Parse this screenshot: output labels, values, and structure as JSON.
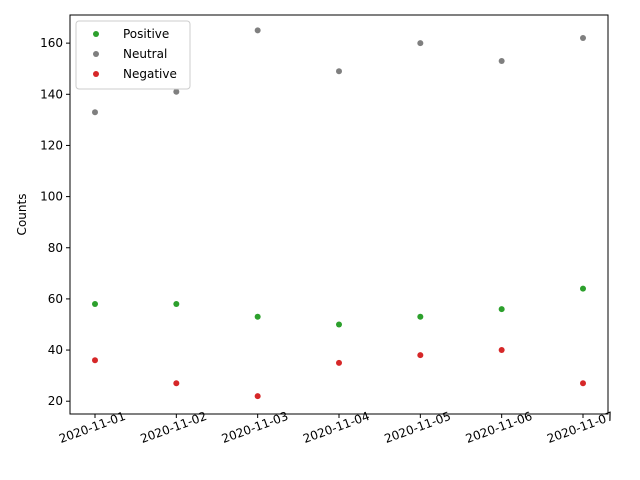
{
  "chart_data": {
    "type": "scatter",
    "title": "",
    "xlabel": "",
    "ylabel": "Counts",
    "x": [
      "2020-11-01",
      "2020-11-02",
      "2020-11-03",
      "2020-11-04",
      "2020-11-05",
      "2020-11-06",
      "2020-11-07"
    ],
    "ylim": [
      15,
      171
    ],
    "yticks": [
      20,
      40,
      60,
      80,
      100,
      120,
      140,
      160
    ],
    "grid": false,
    "legend_position": "top-left",
    "series": [
      {
        "name": "Positive",
        "color": "#2ca02c",
        "values": [
          58,
          58,
          53,
          50,
          53,
          56,
          64
        ]
      },
      {
        "name": "Neutral",
        "color": "#7f7f7f",
        "values": [
          133,
          141,
          165,
          149,
          160,
          153,
          162
        ]
      },
      {
        "name": "Negative",
        "color": "#d62728",
        "values": [
          36,
          27,
          22,
          35,
          38,
          40,
          27
        ]
      }
    ]
  }
}
